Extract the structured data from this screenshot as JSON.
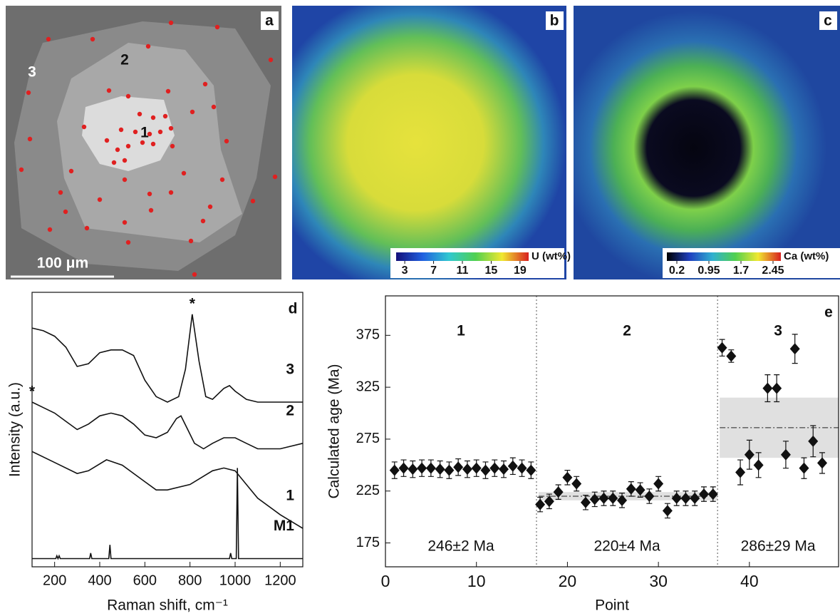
{
  "images": [
    {
      "panel": "a",
      "labels": [
        "1",
        "2",
        "3"
      ],
      "scale_bar": "100 μm"
    },
    {
      "panel": "b",
      "colorbar": {
        "label": "U (wt%)",
        "ticks": [
          3,
          7,
          11,
          15,
          19
        ],
        "lim": [
          2,
          20
        ]
      }
    },
    {
      "panel": "c",
      "colorbar": {
        "label": "Ca (wt%)",
        "ticks": [
          0.2,
          0.95,
          1.7,
          2.45
        ],
        "lim": [
          0,
          2.6
        ]
      }
    }
  ],
  "chart_data": [
    {
      "type": "line",
      "panel": "d",
      "x_label": "Raman shift, cm⁻¹",
      "y_label": "Intensity (a.u.)",
      "xlim": [
        100,
        1300
      ],
      "xticks": [
        200,
        400,
        600,
        800,
        1000,
        1200
      ],
      "ylim": [
        0,
        100
      ],
      "series": [
        {
          "name": "3",
          "color": "#111111",
          "peak_label": "*",
          "x": [
            100,
            150,
            200,
            250,
            300,
            350,
            400,
            450,
            500,
            550,
            600,
            650,
            700,
            750,
            780,
            810,
            840,
            870,
            900,
            950,
            975,
            1000,
            1050,
            1100,
            1200,
            1300
          ],
          "values": [
            87,
            86,
            84,
            80,
            73,
            74,
            78,
            79,
            79,
            77,
            68,
            62,
            60,
            62,
            72,
            92,
            75,
            62,
            61,
            65,
            66,
            64,
            61,
            60,
            60,
            60
          ]
        },
        {
          "name": "2",
          "color": "#111111",
          "peak_label": "*",
          "x": [
            100,
            150,
            200,
            250,
            300,
            350,
            400,
            450,
            500,
            550,
            600,
            650,
            700,
            740,
            760,
            790,
            820,
            860,
            900,
            950,
            1000,
            1050,
            1100,
            1200,
            1300
          ],
          "values": [
            60,
            58,
            56,
            53,
            50,
            52,
            55,
            56,
            55,
            52,
            48,
            47,
            49,
            54,
            55,
            50,
            45,
            43,
            45,
            47,
            47,
            45,
            43,
            43,
            45
          ]
        },
        {
          "name": "1",
          "color": "#111111",
          "x": [
            100,
            200,
            300,
            350,
            430,
            500,
            600,
            650,
            700,
            800,
            900,
            950,
            1000,
            1050,
            1100,
            1200,
            1300
          ],
          "values": [
            42,
            38,
            34,
            35,
            39,
            37,
            31,
            28,
            28,
            30,
            35,
            36,
            35,
            30,
            25,
            19,
            14
          ]
        },
        {
          "name": "M1",
          "color": "#111111",
          "x": [
            100,
            205,
            210,
            215,
            220,
            225,
            355,
            360,
            365,
            440,
            445,
            450,
            975,
            980,
            985,
            1005,
            1010,
            1015,
            1300
          ],
          "values": [
            3,
            3,
            4,
            3,
            4,
            3,
            3,
            5,
            3,
            3,
            8,
            3,
            3,
            5,
            3,
            3,
            36,
            3,
            3
          ]
        }
      ]
    },
    {
      "type": "scatter",
      "panel": "e",
      "x_label": "Point",
      "y_label": "Calculated age (Ma)",
      "color": "#111111",
      "xlim": [
        0,
        49.8
      ],
      "xticks": [
        0,
        10,
        20,
        30,
        40
      ],
      "ylim": [
        152,
        413
      ],
      "yticks": [
        175,
        225,
        275,
        325,
        375
      ],
      "x": [
        1,
        2,
        3,
        4,
        5,
        6,
        7,
        8,
        9,
        10,
        11,
        12,
        13,
        14,
        15,
        16,
        17,
        18,
        19,
        20,
        21,
        22,
        23,
        24,
        25,
        26,
        27,
        28,
        29,
        30,
        31,
        32,
        33,
        34,
        35,
        36,
        37,
        38,
        39,
        40,
        41,
        42,
        43,
        44,
        45,
        46,
        47,
        48
      ],
      "values": [
        245,
        247,
        246,
        247,
        247,
        246,
        245,
        248,
        246,
        247,
        245,
        247,
        246,
        249,
        247,
        245,
        212,
        215,
        224,
        238,
        232,
        214,
        217,
        218,
        218,
        216,
        227,
        226,
        220,
        232,
        206,
        218,
        218,
        218,
        222,
        222,
        363,
        355,
        243,
        260,
        250,
        324,
        324,
        260,
        362,
        247,
        273,
        252
      ],
      "errors": [
        8,
        8,
        8,
        8,
        8,
        8,
        8,
        8,
        8,
        8,
        8,
        8,
        8,
        8,
        8,
        8,
        7,
        7,
        7,
        7,
        7,
        7,
        7,
        7,
        7,
        7,
        7,
        7,
        7,
        7,
        7,
        7,
        7,
        7,
        7,
        7,
        8,
        6,
        12,
        14,
        12,
        13,
        13,
        13,
        14,
        10,
        15,
        10
      ],
      "group_edges": [
        16.6,
        36.5
      ],
      "groups": [
        {
          "label": "1",
          "age": "246±2 Ma",
          "mean": 246,
          "error": 2,
          "band": false
        },
        {
          "label": "2",
          "age": "220±4 Ma",
          "mean": 220,
          "error": 4,
          "band": true
        },
        {
          "label": "3",
          "age": "286±29 Ma",
          "mean": 286,
          "error": 29,
          "band": true
        }
      ]
    }
  ]
}
